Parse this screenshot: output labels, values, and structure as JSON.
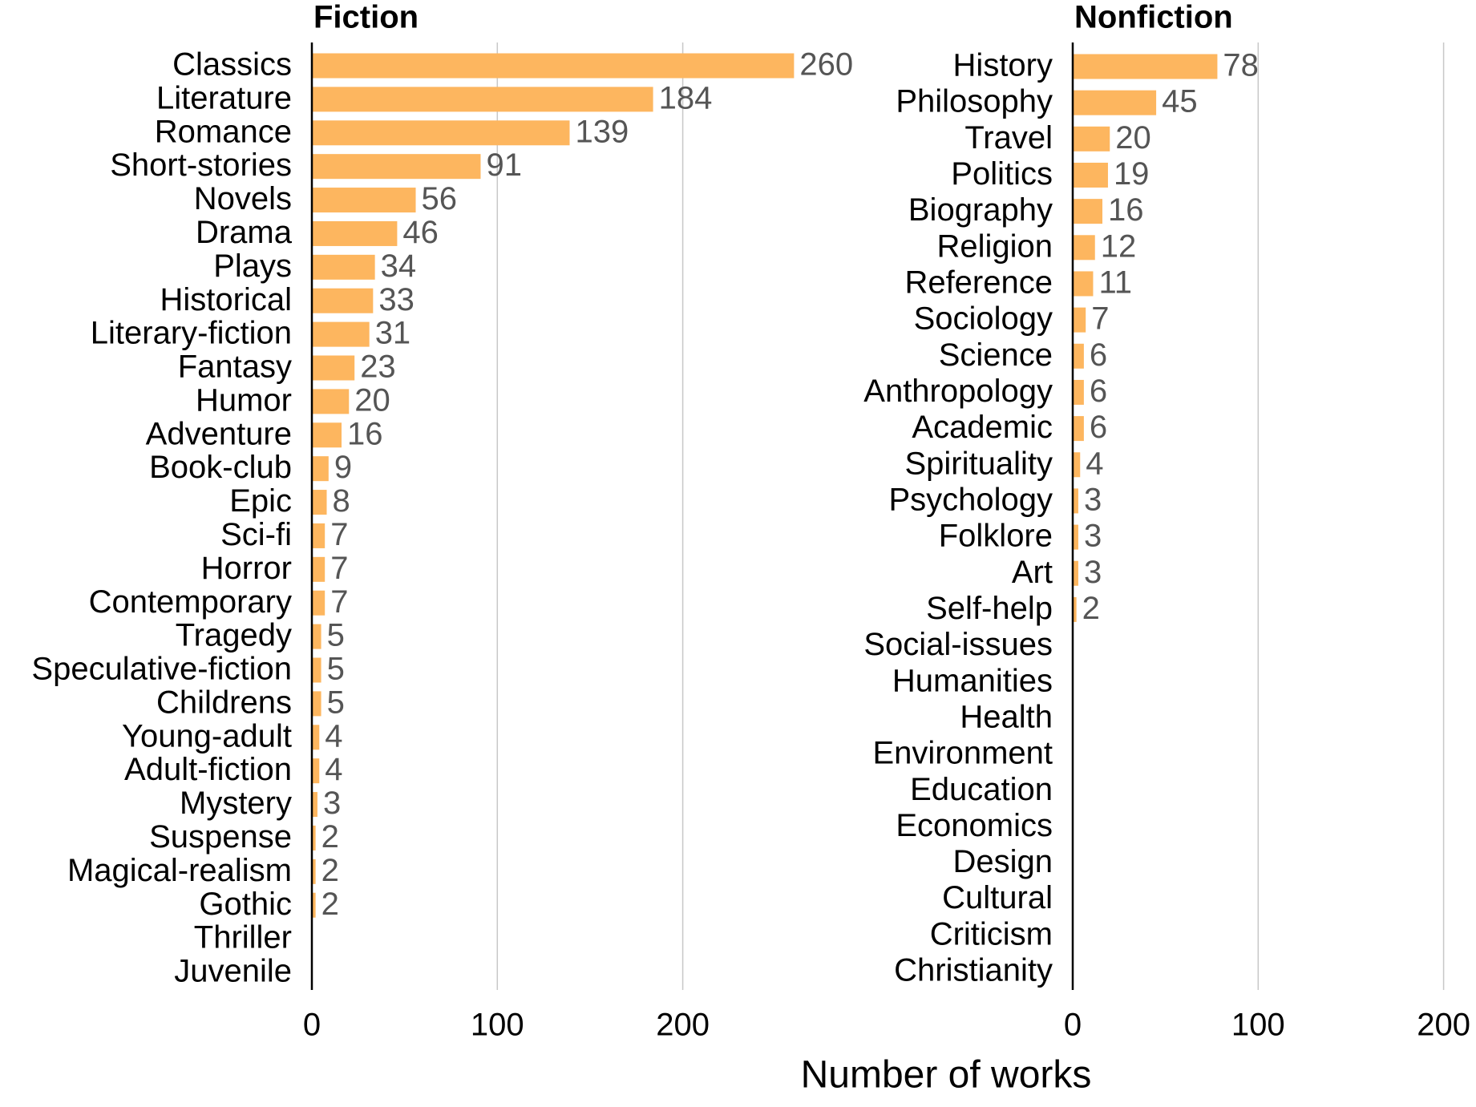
{
  "x_label": "Number of works",
  "chart_data": [
    {
      "type": "bar",
      "orientation": "horizontal",
      "title": "Fiction",
      "color": "#fdb65f",
      "grid": true,
      "categories": [
        "Classics",
        "Literature",
        "Romance",
        "Short-stories",
        "Novels",
        "Drama",
        "Plays",
        "Historical",
        "Literary-fiction",
        "Fantasy",
        "Humor",
        "Adventure",
        "Book-club",
        "Epic",
        "Sci-fi",
        "Horror",
        "Contemporary",
        "Tragedy",
        "Speculative-fiction",
        "Childrens",
        "Young-adult",
        "Adult-fiction",
        "Mystery",
        "Suspense",
        "Magical-realism",
        "Gothic",
        "Thriller",
        "Juvenile"
      ],
      "values": [
        260,
        184,
        139,
        91,
        56,
        46,
        34,
        33,
        31,
        23,
        20,
        16,
        9,
        8,
        7,
        7,
        7,
        5,
        5,
        5,
        4,
        4,
        3,
        2,
        2,
        2,
        null,
        null
      ],
      "xlim": [
        0,
        220
      ],
      "xticks": [
        0,
        100,
        200
      ]
    },
    {
      "type": "bar",
      "orientation": "horizontal",
      "title": "Nonfiction",
      "color": "#fdb65f",
      "grid": true,
      "categories": [
        "History",
        "Philosophy",
        "Travel",
        "Politics",
        "Biography",
        "Religion",
        "Reference",
        "Sociology",
        "Science",
        "Anthropology",
        "Academic",
        "Spirituality",
        "Psychology",
        "Folklore",
        "Art",
        "Self-help",
        "Social-issues",
        "Humanities",
        "Health",
        "Environment",
        "Education",
        "Economics",
        "Design",
        "Cultural",
        "Criticism",
        "Christianity"
      ],
      "values": [
        78,
        45,
        20,
        19,
        16,
        12,
        11,
        7,
        6,
        6,
        6,
        4,
        3,
        3,
        3,
        2,
        null,
        null,
        null,
        null,
        null,
        null,
        null,
        null,
        null,
        null
      ],
      "xlim": [
        0,
        220
      ],
      "xticks": [
        0,
        100,
        200
      ]
    }
  ]
}
